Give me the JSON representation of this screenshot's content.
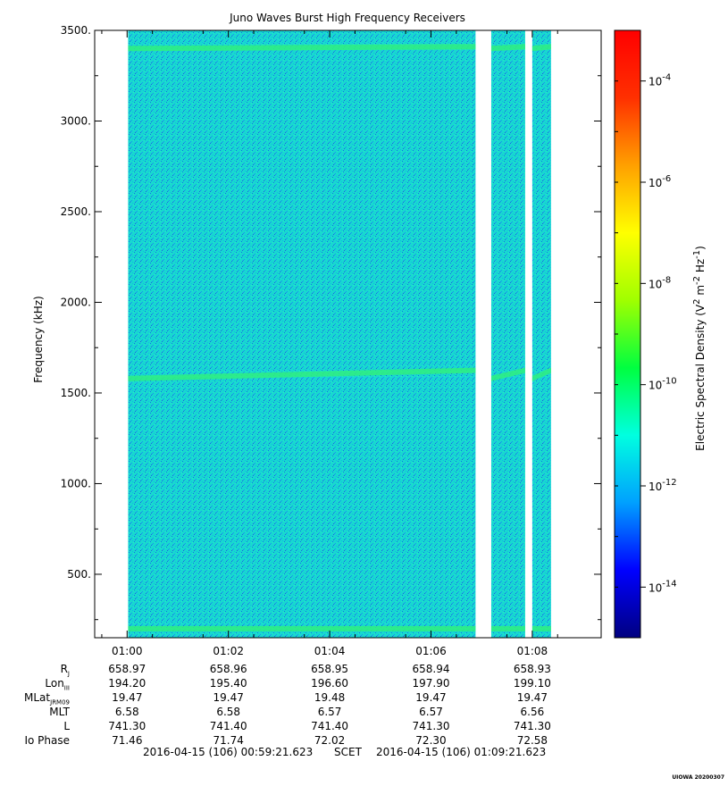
{
  "chart_data": {
    "type": "heatmap",
    "title": "Juno Waves Burst High Frequency Receivers",
    "ylabel": "Frequency (kHz)",
    "ylim": [
      150,
      3500
    ],
    "y_ticks": [
      "500.",
      "1000.",
      "1500.",
      "2000.",
      "2500.",
      "3000.",
      "3500."
    ],
    "y_tick_values": [
      500,
      1000,
      1500,
      2000,
      2500,
      3000,
      3500
    ],
    "x_ticks": [
      "01:00",
      "01:02",
      "01:04",
      "01:06",
      "01:08"
    ],
    "x_tick_minutes": [
      60,
      62,
      64,
      66,
      68
    ],
    "xlim_minutes": [
      59.36,
      69.36
    ],
    "data_segments_minutes": [
      [
        60.02,
        66.88
      ],
      [
        67.19,
        67.86
      ],
      [
        68.0,
        68.37
      ]
    ],
    "emission_bands_khz": [
      {
        "freq": 3400,
        "freq_end": 3410,
        "intensity": "high"
      },
      {
        "freq": 1580,
        "freq_end": 1625,
        "intensity": "high"
      },
      {
        "freq": 200,
        "freq_end": 200,
        "intensity": "high"
      }
    ],
    "background_level": "1e-12",
    "colorbar": {
      "label": "Electric Spectral Density (V² m⁻² Hz⁻¹)",
      "label_parts": [
        "Electric Spectral Density (V",
        "2",
        " m",
        "-2",
        " Hz",
        "-1",
        ")"
      ],
      "scale": "log",
      "range": [
        1e-15,
        0.001
      ],
      "ticks": [
        {
          "base": "10",
          "exp": "-4",
          "value": -4
        },
        {
          "base": "10",
          "exp": "-6",
          "value": -6
        },
        {
          "base": "10",
          "exp": "-8",
          "value": -8
        },
        {
          "base": "10",
          "exp": "-10",
          "value": -10
        },
        {
          "base": "10",
          "exp": "-12",
          "value": -12
        },
        {
          "base": "10",
          "exp": "-14",
          "value": -14
        }
      ],
      "colors": [
        "#000080",
        "#0000ff",
        "#00a0ff",
        "#00ffe0",
        "#00ff40",
        "#a0ff00",
        "#ffff00",
        "#ffa000",
        "#ff3000",
        "#ff0000"
      ]
    }
  },
  "ephemeris": {
    "rows": [
      {
        "label": "R",
        "sub": "J",
        "values": [
          "658.97",
          "658.96",
          "658.95",
          "658.94",
          "658.93"
        ]
      },
      {
        "label": "Lon",
        "sub": "III",
        "values": [
          "194.20",
          "195.40",
          "196.60",
          "197.90",
          "199.10"
        ]
      },
      {
        "label": "MLat",
        "sub": "JRM09",
        "values": [
          "19.47",
          "19.47",
          "19.48",
          "19.47",
          "19.47"
        ]
      },
      {
        "label": "MLT",
        "sub": "",
        "values": [
          "6.58",
          "6.58",
          "6.57",
          "6.57",
          "6.56"
        ]
      },
      {
        "label": "L",
        "sub": "",
        "values": [
          "741.30",
          "741.40",
          "741.40",
          "741.30",
          "741.30"
        ]
      },
      {
        "label": "Io Phase",
        "sub": "",
        "values": [
          "71.46",
          "71.74",
          "72.02",
          "72.30",
          "72.58"
        ]
      }
    ]
  },
  "footer": {
    "start": "2016-04-15 (106) 00:59:21.623",
    "frame": "SCET",
    "end": "2016-04-15 (106) 01:09:21.623"
  },
  "credit": "UIOWA 20200307"
}
